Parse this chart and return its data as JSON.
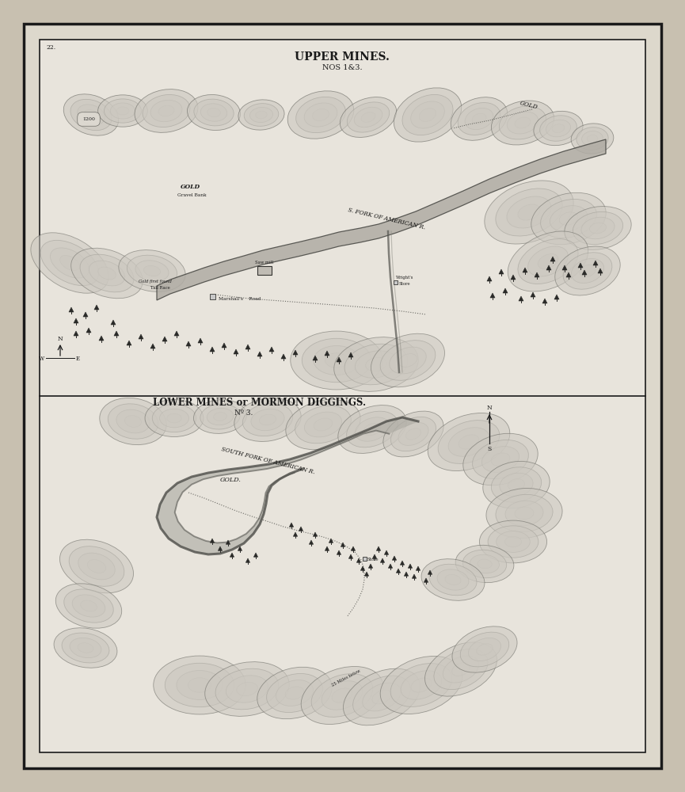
{
  "bg_color": "#d8d0c0",
  "page_bg": "#c8c0b0",
  "border_color": "#1a1a1a",
  "map_bg": "#e8e4dc",
  "title_upper": "UPPER MINES.",
  "subtitle_upper": "NOS 1&3.",
  "title_lower": "LOWER MINES or MORMON DIGGINGS.",
  "subtitle_lower": "Nº 3.",
  "text_color": "#1a1a1a",
  "river_color": "#888880",
  "terrain_color": "#555550",
  "light_terrain": "#999990"
}
